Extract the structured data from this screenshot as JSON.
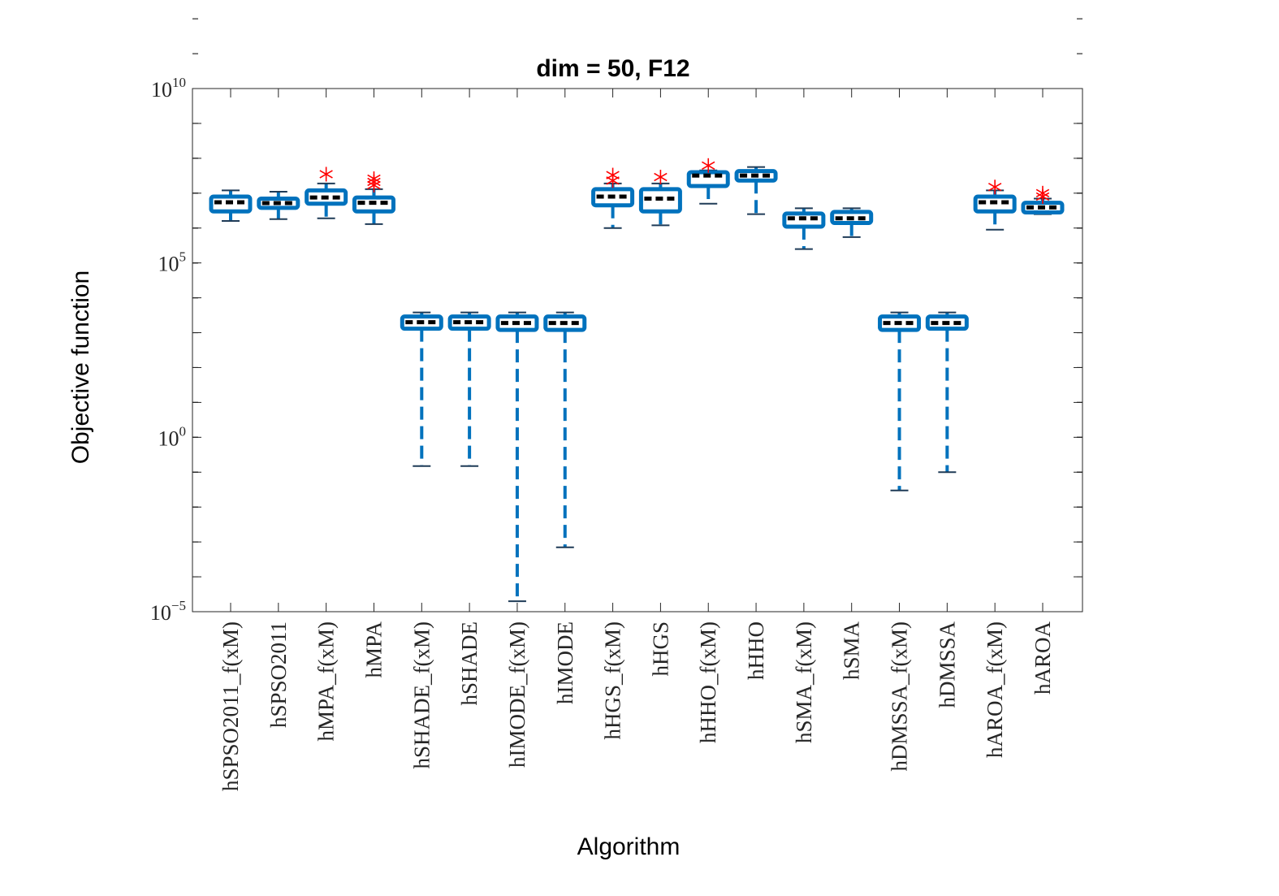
{
  "chart_data": {
    "type": "boxplot",
    "title": "dim = 50,  F12",
    "xlabel": "Algorithm",
    "ylabel": "Objective function",
    "yscale": "log",
    "ylim": [
      1e-05,
      10000000000.0
    ],
    "yticks": [
      {
        "value": 1e-05,
        "base": "10",
        "exp": "−5"
      },
      {
        "value": 1,
        "base": "10",
        "exp": "0"
      },
      {
        "value": 100000.0,
        "base": "10",
        "exp": "5"
      },
      {
        "value": 10000000000.0,
        "base": "10",
        "exp": "10"
      }
    ],
    "colors": {
      "box": "#0072BD",
      "median": "#000000",
      "outlier": "#FF0000",
      "axis": "#262626"
    },
    "categories": [
      "hSPSO2011_f(xM)",
      "hSPSO2011",
      "hMPA_f(xM)",
      "hMPA",
      "hSHADE_f(xM)",
      "hSHADE",
      "hIMODE_f(xM)",
      "hIMODE",
      "hHGS_f(xM)",
      "hHGS",
      "hHHO_f(xM)",
      "hHHO",
      "hSMA_f(xM)",
      "hSMA",
      "hDMSSA_f(xM)",
      "hDMSSA",
      "hAROA_f(xM)",
      "hAROA"
    ],
    "boxes": [
      {
        "wlo": 1600000.0,
        "q1": 3000000.0,
        "med": 5500000.0,
        "q3": 8000000.0,
        "whi": 12000000.0,
        "outliers": []
      },
      {
        "wlo": 1800000.0,
        "q1": 3800000.0,
        "med": 5200000.0,
        "q3": 7000000.0,
        "whi": 11000000.0,
        "outliers": []
      },
      {
        "wlo": 1900000.0,
        "q1": 5000000.0,
        "med": 7500000.0,
        "q3": 12000000.0,
        "whi": 19000000.0,
        "outliers": [
          35000000.0
        ]
      },
      {
        "wlo": 1300000.0,
        "q1": 3000000.0,
        "med": 5300000.0,
        "q3": 7500000.0,
        "whi": 13000000.0,
        "outliers": [
          17000000.0,
          21000000.0,
          26000000.0
        ]
      },
      {
        "wlo": 0.15,
        "q1": 1300,
        "med": 2000,
        "q3": 2900,
        "whi": 3800,
        "outliers": []
      },
      {
        "wlo": 0.15,
        "q1": 1300,
        "med": 2000,
        "q3": 2900,
        "whi": 3800,
        "outliers": []
      },
      {
        "wlo": 2e-05,
        "q1": 1200,
        "med": 1900,
        "q3": 2900,
        "whi": 3800,
        "outliers": []
      },
      {
        "wlo": 0.0007,
        "q1": 1200,
        "med": 1900,
        "q3": 2900,
        "whi": 3800,
        "outliers": []
      },
      {
        "wlo": 1000000.0,
        "q1": 4500000.0,
        "med": 8000000.0,
        "q3": 13000000.0,
        "whi": 19000000.0,
        "outliers": [
          23000000.0,
          33000000.0
        ]
      },
      {
        "wlo": 1200000.0,
        "q1": 3000000.0,
        "med": 7000000.0,
        "q3": 13000000.0,
        "whi": 19000000.0,
        "outliers": [
          29000000.0
        ]
      },
      {
        "wlo": 5000000.0,
        "q1": 16000000.0,
        "med": 32000000.0,
        "q3": 40000000.0,
        "whi": 45000000.0,
        "outliers": [
          62000000.0
        ]
      },
      {
        "wlo": 2500000.0,
        "q1": 23000000.0,
        "med": 32000000.0,
        "q3": 43000000.0,
        "whi": 56000000.0,
        "outliers": []
      },
      {
        "wlo": 250000.0,
        "q1": 1100000.0,
        "med": 1900000.0,
        "q3": 2600000.0,
        "whi": 3700000.0,
        "outliers": []
      },
      {
        "wlo": 550000.0,
        "q1": 1400000.0,
        "med": 1900000.0,
        "q3": 2900000.0,
        "whi": 3700000.0,
        "outliers": []
      },
      {
        "wlo": 0.03,
        "q1": 1200,
        "med": 1900,
        "q3": 2900,
        "whi": 3800,
        "outliers": []
      },
      {
        "wlo": 0.1,
        "q1": 1300,
        "med": 1900,
        "q3": 2900,
        "whi": 3800,
        "outliers": []
      },
      {
        "wlo": 900000.0,
        "q1": 3000000.0,
        "med": 5500000.0,
        "q3": 8000000.0,
        "whi": 12000000.0,
        "outliers": [
          15000000.0
        ]
      },
      {
        "wlo": 2500000.0,
        "q1": 2800000.0,
        "med": 3900000.0,
        "q3": 5300000.0,
        "whi": 7000000.0,
        "outliers": [
          8000000.0,
          10000000.0
        ]
      }
    ]
  }
}
